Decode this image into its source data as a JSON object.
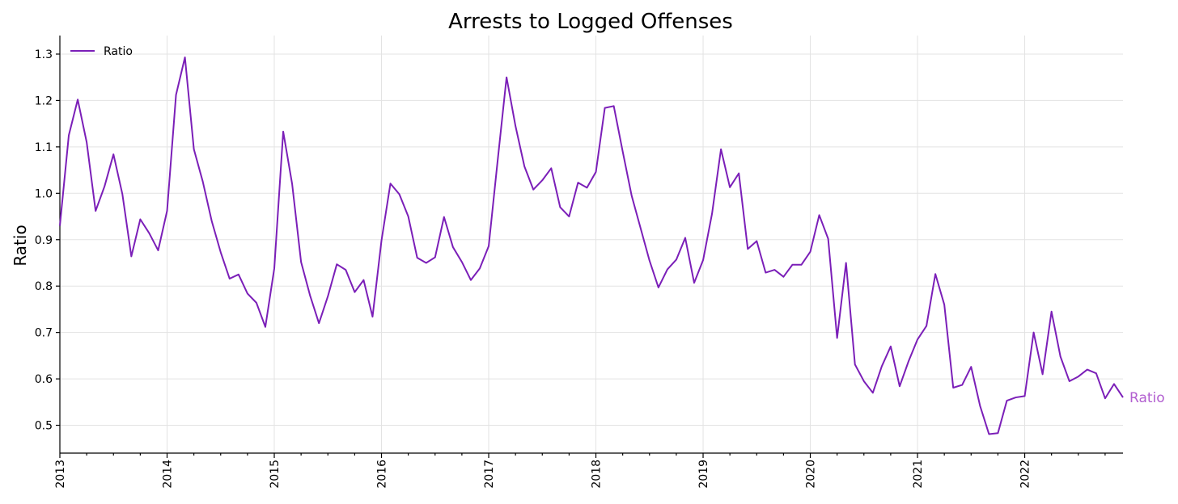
{
  "chart_data": {
    "type": "line",
    "title": "Arrests to Logged Offenses",
    "xlabel": "",
    "ylabel": "Ratio",
    "x_start": "2013-01",
    "x_frequency": "monthly",
    "xlim": [
      "2013-01",
      "2022-12"
    ],
    "ylim": [
      0.44,
      1.34
    ],
    "yticks": [
      0.5,
      0.6,
      0.7,
      0.8,
      0.9,
      1.0,
      1.1,
      1.2,
      1.3
    ],
    "ytick_labels": [
      "0.5",
      "0.6",
      "0.7",
      "0.8",
      "0.9",
      "1.0",
      "1.1",
      "1.2",
      "1.3"
    ],
    "xticks": [
      "2013",
      "2014",
      "2015",
      "2016",
      "2017",
      "2018",
      "2019",
      "2020",
      "2021",
      "2022"
    ],
    "grid": true,
    "legend": {
      "position": "top-left",
      "entries": [
        "Ratio"
      ]
    },
    "end_label": "Ratio",
    "series": [
      {
        "name": "Ratio",
        "color": "#7B1FB8",
        "label_color": "#B25FD0",
        "values": [
          0.93,
          1.125,
          1.202,
          1.11,
          0.962,
          1.015,
          1.084,
          0.998,
          0.864,
          0.944,
          0.914,
          0.877,
          0.962,
          1.212,
          1.293,
          1.095,
          1.025,
          0.94,
          0.873,
          0.816,
          0.825,
          0.784,
          0.764,
          0.712,
          0.838,
          1.133,
          1.02,
          0.852,
          0.78,
          0.72,
          0.778,
          0.847,
          0.835,
          0.787,
          0.813,
          0.734,
          0.898,
          1.021,
          0.998,
          0.95,
          0.861,
          0.85,
          0.862,
          0.949,
          0.884,
          0.852,
          0.813,
          0.838,
          0.886,
          1.07,
          1.25,
          1.145,
          1.058,
          1.008,
          1.028,
          1.054,
          0.97,
          0.95,
          1.023,
          1.012,
          1.046,
          1.184,
          1.188,
          1.09,
          0.995,
          0.925,
          0.855,
          0.797,
          0.836,
          0.857,
          0.904,
          0.807,
          0.856,
          0.956,
          1.095,
          1.013,
          1.043,
          0.88,
          0.897,
          0.829,
          0.835,
          0.82,
          0.846,
          0.846,
          0.874,
          0.953,
          0.902,
          0.688,
          0.85,
          0.631,
          0.595,
          0.57,
          0.627,
          0.67,
          0.584,
          0.638,
          0.685,
          0.714,
          0.826,
          0.76,
          0.581,
          0.587,
          0.626,
          0.542,
          0.481,
          0.483,
          0.553,
          0.56,
          0.563,
          0.7,
          0.61,
          0.745,
          0.648,
          0.595,
          0.605,
          0.62,
          0.612,
          0.558,
          0.589,
          0.56
        ]
      }
    ]
  }
}
